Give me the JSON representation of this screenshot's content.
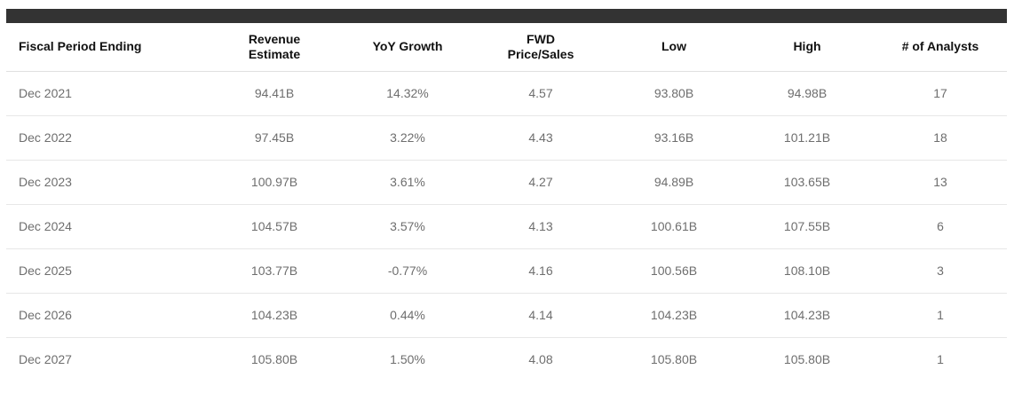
{
  "table": {
    "columns": [
      {
        "label": "Fiscal Period Ending"
      },
      {
        "label": "Revenue\nEstimate"
      },
      {
        "label": "YoY Growth"
      },
      {
        "label": "FWD\nPrice/Sales"
      },
      {
        "label": "Low"
      },
      {
        "label": "High"
      },
      {
        "label": "# of Analysts"
      }
    ],
    "rows": [
      [
        "Dec 2021",
        "94.41B",
        "14.32%",
        "4.57",
        "93.80B",
        "94.98B",
        "17"
      ],
      [
        "Dec 2022",
        "97.45B",
        "3.22%",
        "4.43",
        "93.16B",
        "101.21B",
        "18"
      ],
      [
        "Dec 2023",
        "100.97B",
        "3.61%",
        "4.27",
        "94.89B",
        "103.65B",
        "13"
      ],
      [
        "Dec 2024",
        "104.57B",
        "3.57%",
        "4.13",
        "100.61B",
        "107.55B",
        "6"
      ],
      [
        "Dec 2025",
        "103.77B",
        "-0.77%",
        "4.16",
        "100.56B",
        "108.10B",
        "3"
      ],
      [
        "Dec 2026",
        "104.23B",
        "0.44%",
        "4.14",
        "104.23B",
        "104.23B",
        "1"
      ],
      [
        "Dec 2027",
        "105.80B",
        "1.50%",
        "4.08",
        "105.80B",
        "105.80B",
        "1"
      ]
    ]
  },
  "colors": {
    "top_bar": "#333333",
    "header_text": "#111111",
    "body_text": "#6e6e6e",
    "row_divider": "#e7e7e7",
    "header_divider": "#e0e0e0",
    "background": "#ffffff"
  }
}
